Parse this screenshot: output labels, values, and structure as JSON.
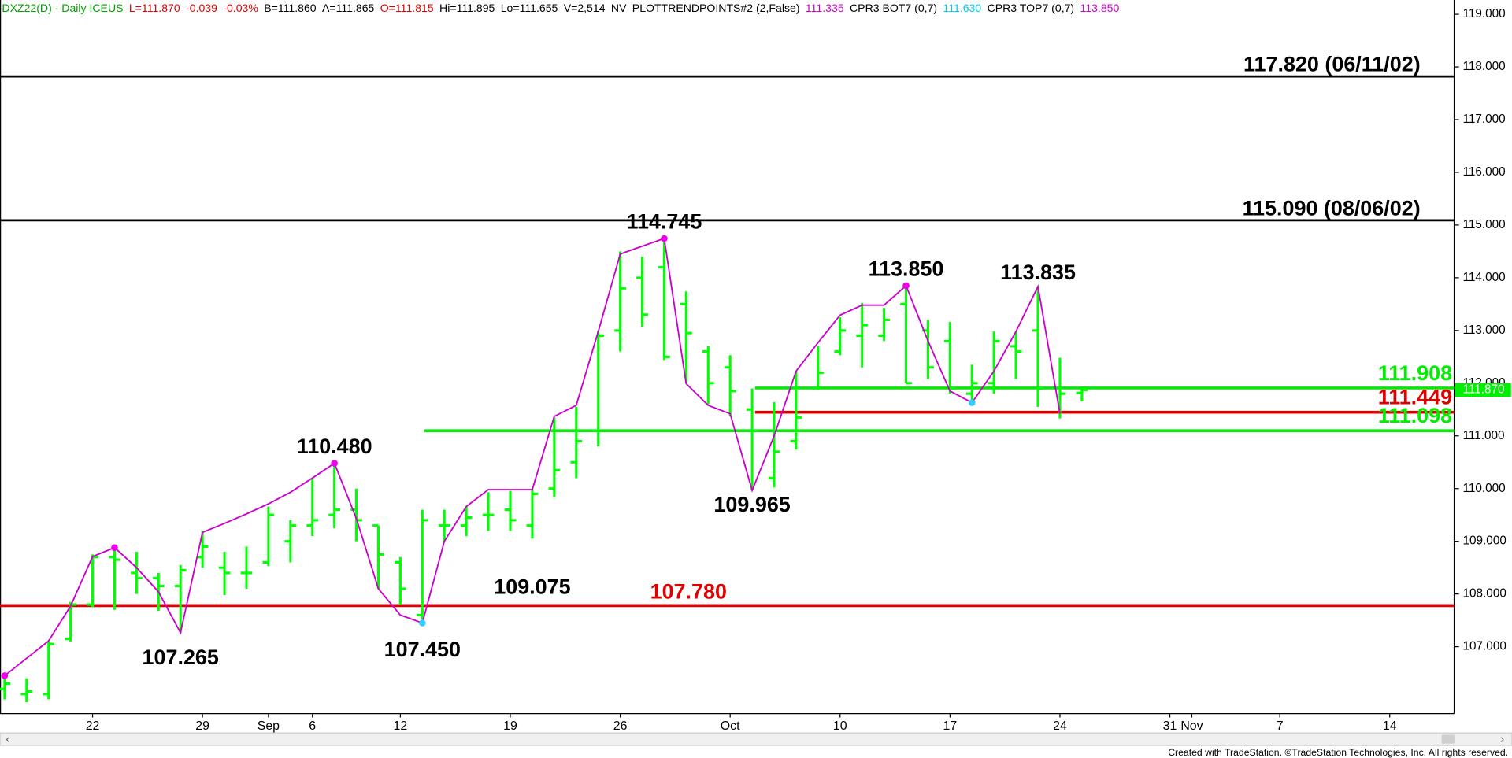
{
  "chart_data": {
    "type": "ohlc",
    "header": [
      {
        "text": "DXZ22(D) - Daily  ICEUS",
        "color": "#00a000"
      },
      {
        "text": "L=111.870",
        "color": "#e00000"
      },
      {
        "text": "-0.039",
        "color": "#e00000"
      },
      {
        "text": "-0.03%",
        "color": "#e00000"
      },
      {
        "text": "B=111.860",
        "color": "#000000"
      },
      {
        "text": "A=111.865",
        "color": "#000000"
      },
      {
        "text": "O=111.815",
        "color": "#e00000"
      },
      {
        "text": "Hi=111.895",
        "color": "#000000"
      },
      {
        "text": "Lo=111.655",
        "color": "#000000"
      },
      {
        "text": "V=2,514",
        "color": "#000000"
      },
      {
        "text": "NV",
        "color": "#000000"
      },
      {
        "text": "PLOTTRENDPOINTS#2 (2,False)",
        "color": "#000000"
      },
      {
        "text": "111.335",
        "color": "#cc00cc"
      },
      {
        "text": "CPR3 BOT7 (0,7)",
        "color": "#000000"
      },
      {
        "text": "111.630",
        "color": "#00ccee"
      },
      {
        "text": "CPR3 TOP7 (0,7)",
        "color": "#000000"
      },
      {
        "text": "113.850",
        "color": "#cc00cc"
      }
    ],
    "categories": [
      null,
      null,
      null,
      null,
      "22",
      null,
      null,
      null,
      null,
      "29",
      null,
      null,
      "Sep",
      null,
      "6",
      null,
      null,
      null,
      "12",
      null,
      null,
      null,
      null,
      "19",
      null,
      null,
      null,
      null,
      "26",
      null,
      null,
      null,
      null,
      "Oct",
      null,
      null,
      null,
      null,
      "10",
      null,
      null,
      null,
      null,
      "17",
      null,
      null,
      null,
      null,
      "24",
      null,
      null,
      null,
      null,
      "31",
      "Nov",
      null,
      null,
      null,
      "7",
      null,
      null,
      null,
      null,
      "14",
      null,
      null
    ],
    "open": [
      106.2,
      106.1,
      106.1,
      107.15,
      107.8,
      108.7,
      108.4,
      108.3,
      108.15,
      108.7,
      108.5,
      108.4,
      108.6,
      109.0,
      109.3,
      109.5,
      109.6,
      109.3,
      108.6,
      107.6,
      109.3,
      109.3,
      109.5,
      109.6,
      109.3,
      110.0,
      110.5,
      111.1,
      113.0,
      114.0,
      114.2,
      113.5,
      112.6,
      112.3,
      111.5,
      110.2,
      110.9,
      111.9,
      112.6,
      112.9,
      112.9,
      113.5,
      113.0,
      112.8,
      111.8,
      112.0,
      112.7,
      113.0,
      111.9,
      111.815,
      null,
      null,
      null,
      null,
      null,
      null,
      null,
      null,
      null,
      null,
      null,
      null,
      null,
      null,
      null,
      null
    ],
    "high": [
      106.45,
      106.4,
      107.1,
      107.85,
      108.75,
      108.88,
      108.8,
      108.4,
      108.55,
      109.2,
      108.8,
      108.9,
      109.66,
      109.4,
      110.2,
      110.48,
      110.0,
      109.3,
      108.7,
      109.6,
      109.6,
      109.66,
      109.93,
      109.96,
      110.0,
      111.35,
      111.55,
      113.0,
      114.5,
      114.4,
      114.745,
      113.74,
      112.7,
      112.53,
      111.9,
      111.64,
      112.23,
      112.7,
      113.25,
      113.52,
      113.43,
      113.85,
      113.2,
      113.16,
      112.35,
      112.98,
      112.98,
      113.835,
      112.48,
      111.895,
      null,
      null,
      null,
      null,
      null,
      null,
      null,
      null,
      null,
      null,
      null,
      null,
      null,
      null,
      null,
      null
    ],
    "low": [
      106.0,
      105.95,
      106.0,
      107.1,
      107.75,
      107.7,
      108.0,
      107.68,
      107.265,
      108.5,
      107.98,
      108.1,
      108.53,
      108.6,
      109.1,
      109.25,
      109.0,
      108.1,
      107.8,
      107.45,
      109.0,
      109.1,
      109.2,
      109.2,
      109.05,
      109.84,
      110.2,
      110.8,
      112.6,
      113.07,
      112.44,
      112.0,
      111.6,
      111.37,
      109.965,
      110.02,
      110.74,
      111.87,
      112.53,
      112.3,
      112.8,
      112.0,
      112.08,
      111.8,
      111.63,
      111.8,
      112.08,
      111.55,
      111.33,
      111.655,
      null,
      null,
      null,
      null,
      null,
      null,
      null,
      null,
      null,
      null,
      null,
      null,
      null,
      null,
      null,
      null
    ],
    "close": [
      106.3,
      106.15,
      107.05,
      107.8,
      108.7,
      108.65,
      108.3,
      108.15,
      108.45,
      108.9,
      108.4,
      108.4,
      109.5,
      109.3,
      109.4,
      109.6,
      109.4,
      108.75,
      108.1,
      109.4,
      109.3,
      109.45,
      109.5,
      109.4,
      109.9,
      110.35,
      110.9,
      112.9,
      113.8,
      113.3,
      112.5,
      112.95,
      112.0,
      111.85,
      111.1,
      110.7,
      111.35,
      112.2,
      113.0,
      113.1,
      113.2,
      112.0,
      112.3,
      111.9,
      112.0,
      112.8,
      112.6,
      111.9,
      111.8,
      111.87,
      null,
      null,
      null,
      null,
      null,
      null,
      null,
      null,
      null,
      null,
      null,
      null,
      null,
      null,
      null,
      null
    ],
    "bar_color": "#00ff00",
    "trend": {
      "color": "#cc00cc",
      "values": [
        106.45,
        106.78,
        107.11,
        107.77,
        108.71,
        108.88,
        108.5,
        108.04,
        107.265,
        109.17,
        109.34,
        109.52,
        109.71,
        109.93,
        110.2,
        110.48,
        109.43,
        108.1,
        107.6,
        107.45,
        109.0,
        109.66,
        109.98,
        109.98,
        109.98,
        111.37,
        111.58,
        112.98,
        114.45,
        114.6,
        114.745,
        111.99,
        111.58,
        111.42,
        109.965,
        111.0,
        112.23,
        112.77,
        113.29,
        113.48,
        113.48,
        113.85,
        112.8,
        111.85,
        111.63,
        112.23,
        112.98,
        113.835,
        111.42,
        null,
        null,
        null,
        null,
        null,
        null,
        null,
        null,
        null,
        null,
        null,
        null,
        null,
        null,
        null,
        null,
        null
      ]
    },
    "pivots_top": {
      "color": "#ee00ee",
      "values": [
        106.45,
        null,
        null,
        null,
        null,
        108.88,
        null,
        null,
        null,
        null,
        null,
        null,
        null,
        null,
        null,
        110.48,
        null,
        null,
        null,
        null,
        null,
        null,
        null,
        null,
        null,
        null,
        null,
        null,
        null,
        null,
        114.745,
        null,
        null,
        null,
        null,
        null,
        null,
        null,
        null,
        null,
        null,
        113.85,
        null,
        null,
        null,
        null,
        null,
        null,
        null,
        null,
        null,
        null,
        null,
        null,
        null,
        null,
        null,
        null,
        null,
        null,
        null,
        null,
        null,
        null,
        null,
        null
      ]
    },
    "pivots_bottom": {
      "color": "#33ccff",
      "values": [
        null,
        null,
        null,
        null,
        null,
        null,
        null,
        null,
        null,
        null,
        null,
        null,
        null,
        null,
        null,
        null,
        null,
        null,
        null,
        107.45,
        null,
        null,
        null,
        null,
        null,
        null,
        null,
        null,
        null,
        null,
        null,
        null,
        null,
        null,
        null,
        null,
        null,
        null,
        null,
        null,
        null,
        null,
        null,
        null,
        111.63,
        null,
        null,
        null,
        null,
        null,
        null,
        null,
        null,
        null,
        null,
        null,
        null,
        null,
        null,
        null,
        null,
        null,
        null,
        null,
        null,
        null
      ]
    },
    "levels": [
      {
        "value": 117.82,
        "label": "117.820 (06/11/02)",
        "color": "#000000"
      },
      {
        "value": 115.09,
        "label": "115.090 (08/06/02)",
        "color": "#000000"
      },
      {
        "value": 107.78,
        "label": "107.780",
        "color": "#e00000"
      },
      {
        "value": 111.908,
        "label": "111.908",
        "color": "#00ee00"
      },
      {
        "value": 111.449,
        "label": "111.449",
        "color": "#e00000"
      },
      {
        "value": 111.098,
        "label": "111.098",
        "color": "#00ee00"
      }
    ],
    "annotations": [
      {
        "value": 114.745,
        "label": "114.745"
      },
      {
        "value": 113.85,
        "label": "113.850"
      },
      {
        "value": 113.835,
        "label": "113.835"
      },
      {
        "value": 110.48,
        "label": "110.480"
      },
      {
        "value": 109.965,
        "label": "109.965"
      },
      {
        "value": 109.075,
        "label": "109.075"
      },
      {
        "value": 107.265,
        "label": "107.265"
      },
      {
        "value": 107.45,
        "label": "107.450"
      }
    ],
    "last": {
      "value": 111.87,
      "label": "111.870",
      "color": "#00ee00"
    },
    "ylim": [
      105.73,
      119.27
    ],
    "yticks": [
      {
        "value": 107,
        "label": "107.000"
      },
      {
        "value": 108,
        "label": "108.000"
      },
      {
        "value": 109,
        "label": "109.000"
      },
      {
        "value": 110,
        "label": "110.000"
      },
      {
        "value": 111,
        "label": "111.000"
      },
      {
        "value": 112,
        "label": "112.000"
      },
      {
        "value": 113,
        "label": "113.000"
      },
      {
        "value": 114,
        "label": "114.000"
      },
      {
        "value": 115,
        "label": "115.000"
      },
      {
        "value": 116,
        "label": "116.000"
      },
      {
        "value": 117,
        "label": "117.000"
      },
      {
        "value": 118,
        "label": "118.000"
      },
      {
        "value": 119,
        "label": "119.000"
      }
    ],
    "footer": "Created with TradeStation. ©TradeStation Technologies, Inc. All rights reserved."
  }
}
